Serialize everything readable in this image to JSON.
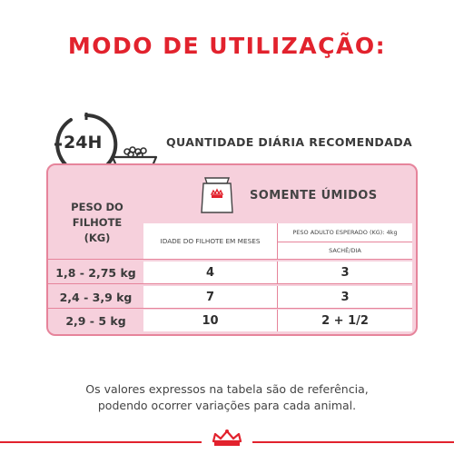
{
  "title": "MODO DE UTILIZAÇÃO:",
  "clock_label": "24H",
  "recommended_label": "QUANTIDADE DIÁRIA RECOMENDADA",
  "panel": {
    "section_label": "SOMENTE ÚMIDOS",
    "weight_header_line1": "PESO DO",
    "weight_header_line2": "FILHOTE",
    "weight_header_line3": "(KG)",
    "age_header": "IDADE DO FILHOTE EM MESES",
    "adult_header": "PESO ADULTO ESPERADO (KG): 4kg",
    "unit_header": "SACHÊ/DIA",
    "rows": [
      {
        "weight": "1,8 - 2,75 kg",
        "age": "4",
        "sachets": "3"
      },
      {
        "weight": "2,4 - 3,9 kg",
        "age": "7",
        "sachets": "3"
      },
      {
        "weight": "2,9 - 5 kg",
        "age": "10",
        "sachets": "2 + 1/2"
      }
    ]
  },
  "footer": {
    "line1": "Os valores expressos na tabela são de referência,",
    "line2": "podendo ocorrer variações para cada animal."
  },
  "colors": {
    "accent": "#e2222d",
    "panel_bg": "#f6d0dc",
    "panel_border": "#e6849b"
  },
  "icons": [
    "clock-24h-icon",
    "food-bowl-icon",
    "food-bag-icon",
    "crown-logo-icon"
  ]
}
